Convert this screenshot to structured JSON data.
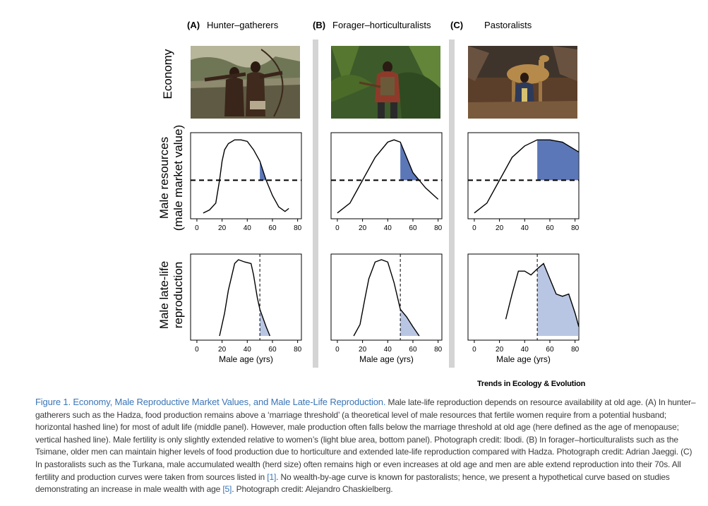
{
  "figure": {
    "columns": [
      {
        "letter": "(A)",
        "title": "Hunter–gatherers"
      },
      {
        "letter": "(B)",
        "title": "Forager–horticulturalists"
      },
      {
        "letter": "(C)",
        "title": "Pastoralists"
      }
    ],
    "row_labels": {
      "economy": "Economy",
      "resources_line1": "Male resources",
      "resources_line2": "(male market value)",
      "reproduction_line1": "Male late-life",
      "reproduction_line2": "reproduction"
    },
    "photos": [
      {
        "name": "hadza-hunters-photo"
      },
      {
        "name": "tsimane-forager-photo"
      },
      {
        "name": "turkana-pastoralist-photo"
      }
    ],
    "journal": "Trends in Ecology & Evolution",
    "caption": {
      "title": "Figure 1. Economy, Male Reproductive Market Values, and Male Late-Life Reproduction.",
      "text_part1": " Male late-life reproduction depends on resource availability at old age. (A) In hunter–gatherers such as the Hadza, food production remains above a ‘marriage threshold’ (a theoretical level of male resources that fertile women require from a potential husband; horizontal hashed line) for most of adult life (middle panel). However, male production often falls below the marriage threshold at old age (here defined as the age of menopause; vertical hashed line). Male fertility is only slightly extended relative to women’s (light blue area, bottom panel). Photograph credit: Ibodi. (B) In forager–horticulturalists such as the Tsimane, older men can maintain higher levels of food production due to horticulture and extended late-life reproduction compared with Hadza. Photograph credit: Adrian Jaeggi. (C) In pastoralists such as the Turkana, male accumulated wealth (herd size) often remains high or even increases at old age and men are able extend reproduction into their 70s. All fertility and production curves were taken from sources listed in ",
      "ref1": "[1]",
      "text_part2": ". No wealth-by-age curve is known for pastoralists; hence, we present a hypothetical curve based on studies demonstrating an increase in male wealth with age ",
      "ref2": "[5]",
      "text_part3": ". Photograph credit: Alejandro Chaskielberg."
    }
  },
  "chart_data": [
    {
      "type": "line",
      "panel": "A-resources",
      "xlabel": "",
      "xticks": [
        0,
        20,
        40,
        60,
        80
      ],
      "xlim": [
        -5,
        83
      ],
      "ylim": [
        0,
        1
      ],
      "threshold": 0.45,
      "menopause_age": 50,
      "shade": "above-threshold-after-menopause",
      "shade_color": "#5b77b8",
      "x": [
        5,
        10,
        15,
        18,
        20,
        22,
        25,
        30,
        35,
        40,
        45,
        50,
        55,
        60,
        65,
        70,
        73
      ],
      "y": [
        0.02,
        0.06,
        0.15,
        0.45,
        0.7,
        0.85,
        0.93,
        0.98,
        0.98,
        0.96,
        0.85,
        0.7,
        0.45,
        0.25,
        0.1,
        0.04,
        0.08
      ]
    },
    {
      "type": "line",
      "panel": "B-resources",
      "xlabel": "",
      "xticks": [
        0,
        20,
        40,
        60,
        80
      ],
      "xlim": [
        -5,
        83
      ],
      "ylim": [
        0,
        1
      ],
      "threshold": 0.45,
      "menopause_age": 50,
      "shade": "above-threshold-after-menopause",
      "shade_color": "#5b77b8",
      "x": [
        0,
        10,
        20,
        30,
        40,
        45,
        50,
        55,
        60,
        70,
        80
      ],
      "y": [
        0.02,
        0.15,
        0.45,
        0.75,
        0.95,
        0.98,
        0.95,
        0.75,
        0.55,
        0.35,
        0.2
      ]
    },
    {
      "type": "line",
      "panel": "C-resources",
      "xlabel": "",
      "xticks": [
        0,
        20,
        40,
        60,
        80
      ],
      "xlim": [
        -5,
        83
      ],
      "ylim": [
        0,
        1
      ],
      "threshold": 0.45,
      "menopause_age": 50,
      "shade": "above-threshold-after-menopause",
      "shade_color": "#5b77b8",
      "x": [
        0,
        10,
        20,
        30,
        40,
        50,
        60,
        70,
        80,
        83
      ],
      "y": [
        0.02,
        0.15,
        0.45,
        0.75,
        0.9,
        0.98,
        0.98,
        0.95,
        0.85,
        0.82
      ]
    },
    {
      "type": "line",
      "panel": "A-reproduction",
      "xlabel": "Male age (yrs)",
      "xticks": [
        0,
        20,
        40,
        60,
        80
      ],
      "xlim": [
        -5,
        83
      ],
      "ylim": [
        0,
        1
      ],
      "menopause_age": 50,
      "shade": "after-menopause",
      "shade_color": "#b9c6e3",
      "x": [
        18,
        22,
        25,
        30,
        33,
        38,
        43,
        45,
        48,
        50,
        55,
        58
      ],
      "y": [
        0.0,
        0.3,
        0.6,
        0.95,
        1.0,
        0.97,
        0.95,
        0.8,
        0.5,
        0.35,
        0.12,
        0.0
      ]
    },
    {
      "type": "line",
      "panel": "B-reproduction",
      "xlabel": "Male age (yrs)",
      "xticks": [
        0,
        20,
        40,
        60,
        80
      ],
      "xlim": [
        -5,
        83
      ],
      "ylim": [
        0,
        1
      ],
      "menopause_age": 50,
      "shade": "after-menopause",
      "shade_color": "#b9c6e3",
      "x": [
        13,
        18,
        22,
        25,
        30,
        35,
        40,
        45,
        50,
        55,
        60,
        65
      ],
      "y": [
        0.0,
        0.15,
        0.5,
        0.75,
        0.97,
        1.0,
        0.97,
        0.7,
        0.35,
        0.25,
        0.12,
        0.0
      ]
    },
    {
      "type": "line",
      "panel": "C-reproduction",
      "xlabel": "Male age (yrs)",
      "xticks": [
        0,
        20,
        40,
        60,
        80
      ],
      "xlim": [
        -5,
        83
      ],
      "ylim": [
        0,
        1
      ],
      "menopause_age": 50,
      "shade": "after-menopause",
      "shade_color": "#b9c6e3",
      "x": [
        25,
        30,
        35,
        40,
        45,
        50,
        55,
        60,
        65,
        70,
        75,
        80,
        83
      ],
      "y": [
        0.22,
        0.55,
        0.85,
        0.85,
        0.8,
        0.88,
        0.95,
        0.75,
        0.55,
        0.52,
        0.55,
        0.3,
        0.12
      ]
    }
  ]
}
